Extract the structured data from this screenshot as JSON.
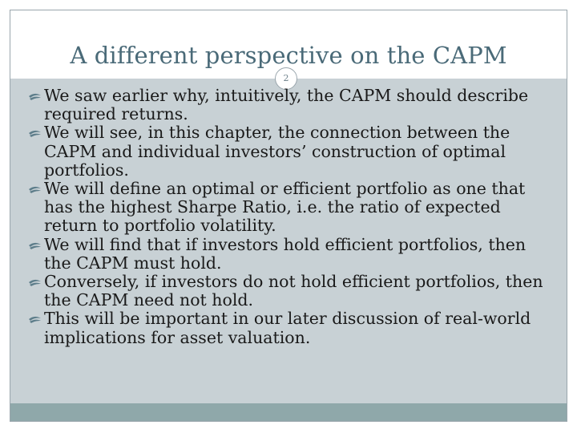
{
  "slide": {
    "title": "A different perspective on the CAPM",
    "page_number": "2",
    "bullets": [
      "We saw earlier why, intuitively, the CAPM should describe required returns.",
      "We will see, in this chapter, the connection between the CAPM and individual investors’ construction of optimal portfolios.",
      "We will define an optimal or efficient portfolio as one that has the highest Sharpe Ratio, i.e. the ratio of expected return to portfolio volatility.",
      "We will find that if investors hold efficient portfolios, then the CAPM must hold.",
      "Conversely, if investors do not hold efficient portfolios, then the CAPM need not hold.",
      "This will be important in our later discussion of real-world implications for asset valuation."
    ]
  },
  "icons": {
    "bullet": "swoosh-bullet-icon"
  },
  "colors": {
    "title": "#4a6a78",
    "content_background": "#c8d1d5",
    "footer_bar": "#8fa8aa",
    "bullet": "#5d7d8a"
  }
}
